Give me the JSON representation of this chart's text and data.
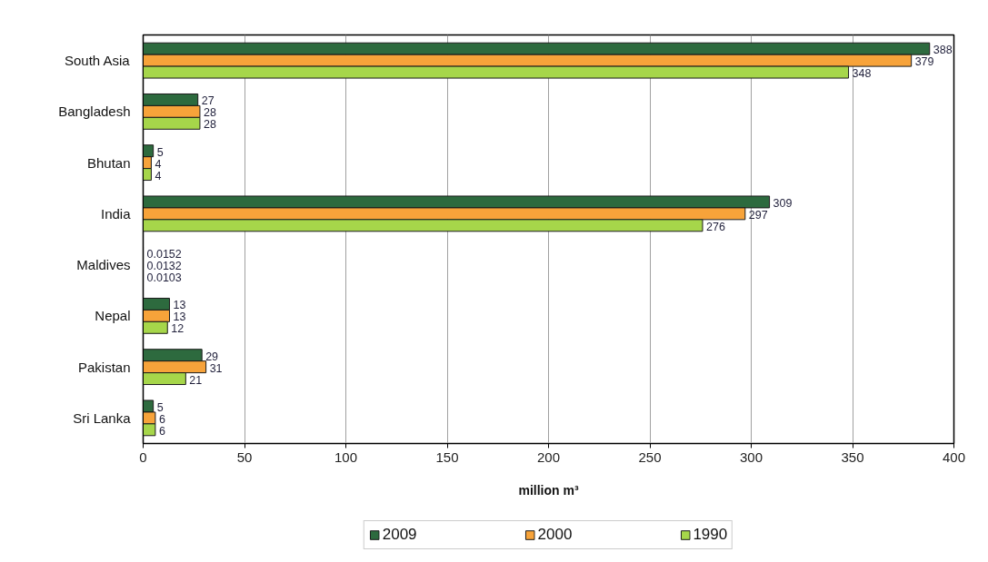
{
  "chart_data": {
    "type": "bar",
    "orientation": "horizontal",
    "categories": [
      "South Asia",
      "Bangladesh",
      "Bhutan",
      "India",
      "Maldives",
      "Nepal",
      "Pakistan",
      "Sri Lanka"
    ],
    "series": [
      {
        "name": "2009",
        "color": "#2d6a3e",
        "values": [
          388,
          27,
          5,
          309,
          0.0152,
          13,
          29,
          5
        ]
      },
      {
        "name": "2000",
        "color": "#f7a33a",
        "values": [
          379,
          28,
          4,
          297,
          0.0132,
          13,
          31,
          6
        ]
      },
      {
        "name": "1990",
        "color": "#a6d64a",
        "values": [
          348,
          28,
          4,
          276,
          0.0103,
          12,
          21,
          6
        ]
      }
    ],
    "xlabel": "million m³",
    "xlim": [
      0,
      400
    ],
    "xticks": [
      0,
      50,
      100,
      150,
      200,
      250,
      300,
      350,
      400
    ],
    "grid": "x",
    "legend": "bottom",
    "data_labels": true
  }
}
